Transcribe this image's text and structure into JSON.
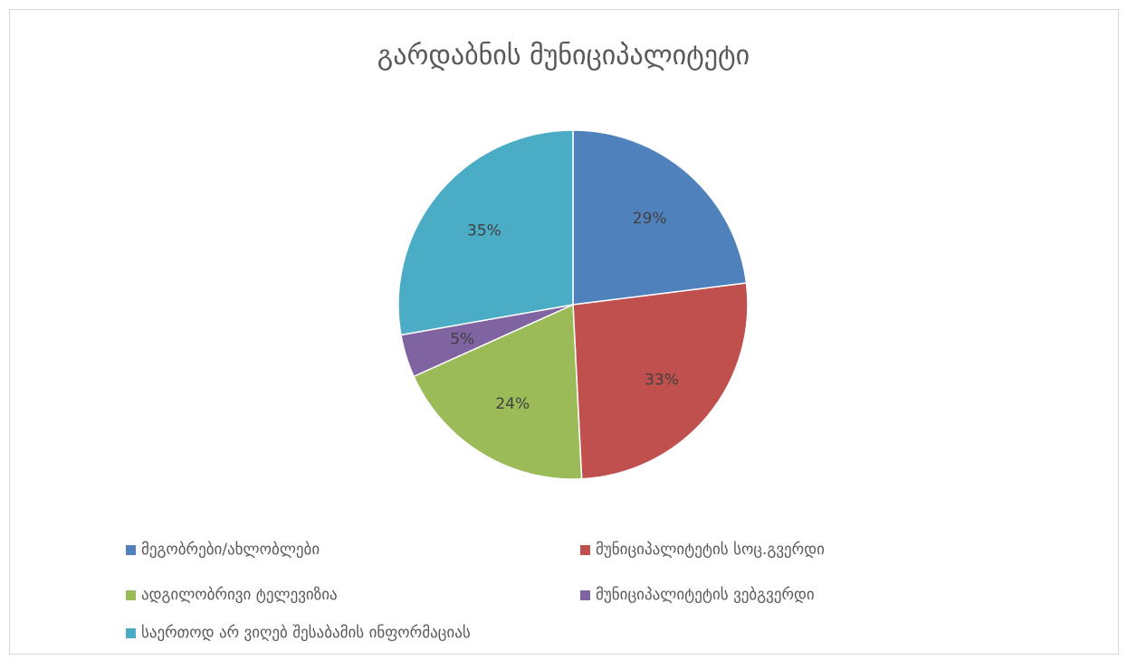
{
  "chart_data": {
    "type": "pie",
    "title": "გარდაბნის მუნიციპალიტეტი",
    "categories": [
      "მეგობრები/ახლობლები",
      "მუნიციპალიტეტის სოც.გვერდი",
      "ადგილობრივი ტელევიზია",
      "მუნიციპალიტეტის ვებგვერდი",
      "საერთოდ არ ვიღებ შესაბამის ინფორმაციას"
    ],
    "values": [
      29,
      33,
      24,
      5,
      35
    ],
    "data_labels": [
      "29%",
      "33%",
      "24%",
      "5%",
      "35%"
    ],
    "colors": [
      "#4F81BD",
      "#C0504D",
      "#9BBB59",
      "#8064A2",
      "#4BACC6"
    ],
    "legend_position": "bottom",
    "start_angle": "12 o'clock",
    "direction": "clockwise"
  }
}
